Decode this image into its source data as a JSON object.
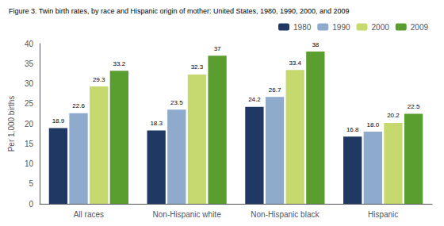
{
  "chart_data": {
    "type": "bar",
    "title": "Figure 3. Twin birth rates, by race and Hispanic origin of mother: United States, 1980, 1990, 2000, and 2009",
    "ylabel": "Per 1,000 births",
    "categories": [
      "All races",
      "Non-Hispanic white",
      "Non-Hispanic black",
      "Hispanic"
    ],
    "series": [
      {
        "name": "1980",
        "color": "#1f3864",
        "values": [
          18.9,
          18.3,
          24.2,
          16.8
        ]
      },
      {
        "name": "1990",
        "color": "#8eaacc",
        "values": [
          22.6,
          23.5,
          26.7,
          18.0
        ],
        "value_labels": [
          "22.6",
          "23.5",
          "26.7",
          "18.0"
        ]
      },
      {
        "name": "2000",
        "color": "#c6d96f",
        "values": [
          29.3,
          32.3,
          33.4,
          20.2
        ]
      },
      {
        "name": "2009",
        "color": "#5a9e2f",
        "values": [
          33.2,
          37.0,
          38.0,
          22.5
        ]
      }
    ],
    "ylim": [
      0,
      40
    ],
    "yticks": [
      0,
      5,
      10,
      15,
      20,
      25,
      30,
      35,
      40
    ],
    "grid": false,
    "legend": "upper right",
    "data_labels": true
  }
}
